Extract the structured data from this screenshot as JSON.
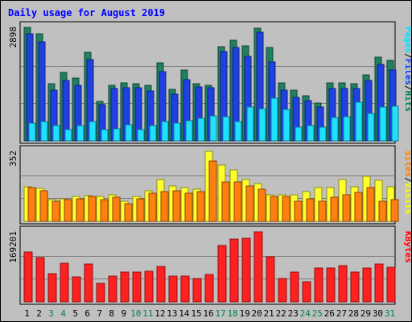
{
  "chart_data": {
    "type": "bar",
    "title": "Daily usage for August 2019",
    "categories": [
      "1",
      "2",
      "3",
      "4",
      "5",
      "6",
      "7",
      "8",
      "9",
      "10",
      "11",
      "12",
      "13",
      "14",
      "15",
      "16",
      "17",
      "18",
      "19",
      "20",
      "21",
      "22",
      "23",
      "24",
      "25",
      "26",
      "27",
      "28",
      "29",
      "30",
      "31"
    ],
    "weekend_days": [
      "3",
      "4",
      "10",
      "11",
      "17",
      "18",
      "24",
      "25",
      "31"
    ],
    "panels": [
      {
        "name": "hits-files-pages",
        "ymax_label": "2898",
        "ymax": 2898,
        "legend": [
          "Pages",
          "/",
          "Files",
          "/",
          "Hits"
        ],
        "legend_colors": [
          "#00e0ff",
          "#000000",
          "#0040ff",
          "#000000",
          "#008060"
        ],
        "series": [
          {
            "name": "Hits",
            "color": "#208060",
            "values": [
              2898,
              2740,
              1450,
              1740,
              1610,
              2270,
              1000,
              1410,
              1490,
              1450,
              1410,
              2000,
              1320,
              1800,
              1450,
              1410,
              2400,
              2570,
              2430,
              2870,
              2390,
              1490,
              1290,
              1160,
              970,
              1490,
              1490,
              1450,
              1690,
              2140,
              2050
            ]
          },
          {
            "name": "Files",
            "color": "#2040e0",
            "values": [
              2740,
              2530,
              1290,
              1550,
              1420,
              2080,
              920,
              1330,
              1350,
              1350,
              1280,
              1770,
              1200,
              1570,
              1370,
              1360,
              2280,
              2380,
              2160,
              2780,
              2020,
              1300,
              1110,
              1030,
              860,
              1330,
              1330,
              1330,
              1540,
              1950,
              1800
            ]
          },
          {
            "name": "Pages",
            "color": "#20e0ff",
            "values": [
              460,
              490,
              400,
              290,
              400,
              500,
              290,
              310,
              420,
              290,
              400,
              490,
              460,
              510,
              580,
              640,
              620,
              490,
              860,
              820,
              1080,
              800,
              350,
              400,
              350,
              600,
              620,
              980,
              690,
              870,
              890
            ]
          }
        ]
      },
      {
        "name": "visits-sites",
        "ymax_label": "352",
        "ymax": 352,
        "legend": [
          "Sites",
          "/",
          "Visits"
        ],
        "legend_colors": [
          "#ff8000",
          "#000000",
          "#ffff00"
        ],
        "series": [
          {
            "name": "Visits",
            "color": "#ffff30",
            "values": [
              175,
              165,
              110,
              115,
              125,
              130,
              125,
              135,
              100,
              125,
              155,
              210,
              180,
              170,
              160,
              352,
              285,
              260,
              210,
              190,
              135,
              135,
              135,
              150,
              170,
              170,
              210,
              175,
              225,
              205,
              175
            ]
          },
          {
            "name": "Sites",
            "color": "#ff8010",
            "values": [
              170,
              155,
              100,
              110,
              115,
              125,
              110,
              120,
              90,
              115,
              140,
              150,
              155,
              140,
              150,
              305,
              200,
              200,
              180,
              160,
              125,
              125,
              100,
              115,
              100,
              120,
              135,
              145,
              170,
              100,
              110
            ]
          }
        ]
      },
      {
        "name": "kbytes",
        "ymax_label": "169201",
        "ymax": 169201,
        "legend": [
          "KBytes"
        ],
        "legend_colors": [
          "#ff0000"
        ],
        "series": [
          {
            "name": "KBytes",
            "color": "#ff2020",
            "values": [
              120000,
              107000,
              68000,
              93000,
              61000,
              91000,
              44000,
              62000,
              72000,
              72000,
              73000,
              85000,
              62000,
              62000,
              56000,
              67000,
              137000,
              151000,
              153000,
              169201,
              108000,
              56000,
              72000,
              49000,
              82000,
              81000,
              87000,
              71000,
              82000,
              92000,
              83000
            ]
          }
        ]
      }
    ]
  },
  "colors": {
    "background": "#c0c0c0",
    "plot_background": "#c0c0c0",
    "title": "#0000ff",
    "weekday_label": "#000000",
    "weekend_label": "#008040",
    "gridline": "#808080"
  }
}
